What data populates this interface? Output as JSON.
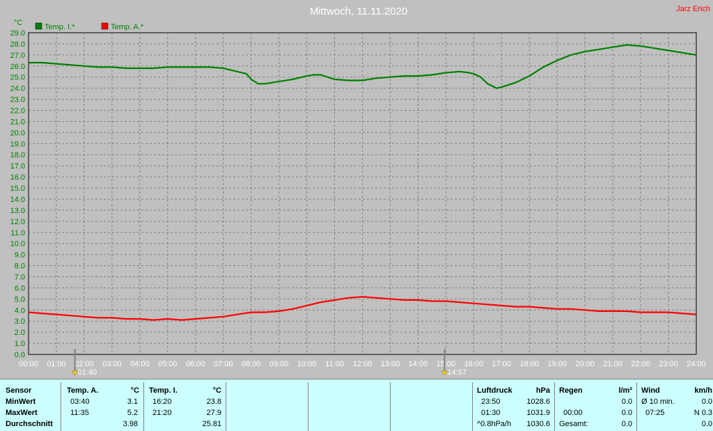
{
  "chart_data": {
    "type": "line",
    "title": "Mittwoch, 11.11.2020",
    "author": "Jarz Erich",
    "ylabel": "°C",
    "ylim": [
      0,
      29
    ],
    "yticks": [
      "0.0",
      "1.0",
      "2.0",
      "3.0",
      "4.0",
      "5.0",
      "6.0",
      "7.0",
      "8.0",
      "9.0",
      "10.0",
      "11.0",
      "12.0",
      "13.0",
      "14.0",
      "15.0",
      "16.0",
      "17.0",
      "18.0",
      "19.0",
      "20.0",
      "21.0",
      "22.0",
      "23.0",
      "24.0",
      "25.0",
      "26.0",
      "27.0",
      "28.0",
      "29.0"
    ],
    "xticks": [
      "00:00",
      "01:00",
      "02:00",
      "03:00",
      "04:00",
      "05:00",
      "06:00",
      "07:00",
      "08:00",
      "09:00",
      "10:00",
      "11:00",
      "12:00",
      "13:00",
      "14:00",
      "15:00",
      "16:00",
      "17:00",
      "18:00",
      "19:00",
      "20:00",
      "21:00",
      "22:00",
      "23:00",
      "24:00"
    ],
    "xlim": [
      0,
      24
    ],
    "grid": true,
    "legend_position": "top-left",
    "sunrise": "01:40",
    "sunset": "14:57",
    "series": [
      {
        "name": "Temp. I.*",
        "color": "#008000",
        "x": [
          0,
          0.5,
          1,
          1.5,
          2,
          2.5,
          3,
          3.5,
          4,
          4.5,
          5,
          5.5,
          6,
          6.5,
          7,
          7.5,
          7.83,
          8,
          8.25,
          8.5,
          9,
          9.5,
          10,
          10.25,
          10.5,
          11,
          11.5,
          12,
          12.5,
          13,
          13.5,
          14,
          14.5,
          15,
          15.5,
          15.83,
          16,
          16.25,
          16.5,
          16.83,
          17,
          17.5,
          18,
          18.25,
          18.5,
          19,
          19.5,
          20,
          20.5,
          21,
          21.5,
          22,
          22.5,
          23,
          23.5,
          24
        ],
        "y": [
          26.3,
          26.3,
          26.2,
          26.1,
          26.0,
          25.9,
          25.9,
          25.8,
          25.8,
          25.8,
          25.9,
          25.9,
          25.9,
          25.9,
          25.8,
          25.5,
          25.3,
          24.8,
          24.4,
          24.4,
          24.6,
          24.8,
          25.1,
          25.2,
          25.2,
          24.8,
          24.7,
          24.7,
          24.9,
          25.0,
          25.1,
          25.1,
          25.2,
          25.4,
          25.5,
          25.4,
          25.3,
          25.0,
          24.4,
          24.0,
          24.1,
          24.5,
          25.1,
          25.5,
          25.9,
          26.5,
          27.0,
          27.3,
          27.5,
          27.7,
          27.9,
          27.8,
          27.6,
          27.4,
          27.2,
          27.0
        ]
      },
      {
        "name": "Temp. A.*",
        "color": "#ff0000",
        "x": [
          0,
          0.5,
          1,
          1.5,
          2,
          2.5,
          3,
          3.5,
          4,
          4.5,
          5,
          5.5,
          6,
          6.5,
          7,
          7.5,
          8,
          8.5,
          9,
          9.5,
          10,
          10.5,
          11,
          11.5,
          12,
          12.5,
          13,
          13.5,
          14,
          14.5,
          15,
          15.5,
          16,
          16.5,
          17,
          17.5,
          18,
          18.5,
          19,
          19.5,
          20,
          20.5,
          21,
          21.5,
          22,
          22.5,
          23,
          23.5,
          24
        ],
        "y": [
          3.8,
          3.7,
          3.6,
          3.5,
          3.4,
          3.3,
          3.3,
          3.2,
          3.2,
          3.1,
          3.2,
          3.1,
          3.2,
          3.3,
          3.4,
          3.6,
          3.8,
          3.8,
          3.9,
          4.1,
          4.4,
          4.7,
          4.9,
          5.1,
          5.2,
          5.1,
          5.0,
          4.9,
          4.9,
          4.8,
          4.8,
          4.7,
          4.6,
          4.5,
          4.4,
          4.3,
          4.3,
          4.2,
          4.1,
          4.1,
          4.0,
          3.9,
          3.9,
          3.9,
          3.8,
          3.8,
          3.8,
          3.7,
          3.6
        ]
      }
    ]
  },
  "table": {
    "sensor": {
      "header": "Sensor",
      "rows": [
        "MinWert",
        "MaxWert",
        "Durchschnitt"
      ]
    },
    "temp_a": {
      "header": "Temp. A.",
      "unit": "°C",
      "min_time": "03:40",
      "min_val": "3.1",
      "max_time": "11:35",
      "max_val": "5.2",
      "avg": "3.98"
    },
    "temp_i": {
      "header": "Temp. I.",
      "unit": "°C",
      "min_time": "16:20",
      "min_val": "23.8",
      "max_time": "21:20",
      "max_val": "27.9",
      "avg": "25.81"
    },
    "luftdruck": {
      "header": "Luftdruck",
      "unit": "hPa",
      "r1_label": "23:50",
      "r1_val": "1028.6",
      "r2_label": "01:30",
      "r2_val": "1031.9",
      "r3_label": "^0.8hPa/h",
      "r3_val": "1030.6"
    },
    "regen": {
      "header": "Regen",
      "unit": "l/m²",
      "r2_label": "00:00",
      "r2_val": "0.0",
      "r3_label": "Gesamt:",
      "r3_val": "0.0",
      "r1_val": "0.0"
    },
    "wind": {
      "header": "Wind",
      "unit": "km/h",
      "r1_label": "Ø 10 min.",
      "r1_val": "0.0",
      "r2_label": "07:25",
      "r2_val": "N 0.3",
      "r3_val": "0.0"
    }
  }
}
